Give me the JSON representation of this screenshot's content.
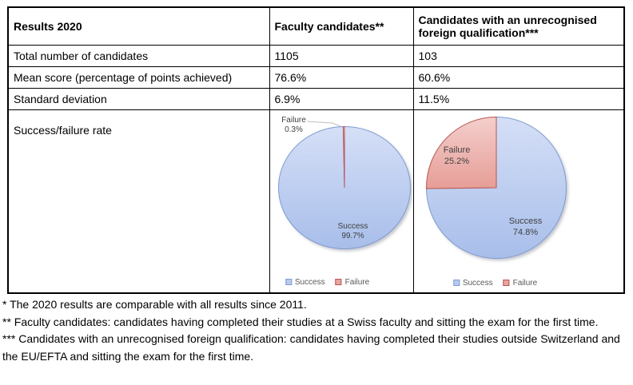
{
  "table": {
    "columns": [
      {
        "header": "Results 2020"
      },
      {
        "header": "Faculty candidates**"
      },
      {
        "header": "Candidates with an unrecognised foreign qualification***"
      }
    ],
    "rows": [
      {
        "label": "Total number of candidates",
        "faculty": "1105",
        "foreign": "103"
      },
      {
        "label": "Mean score (percentage of points achieved)",
        "faculty": "76.6%",
        "foreign": "60.6%"
      },
      {
        "label": "Standard deviation",
        "faculty": "6.9%",
        "foreign": "11.5%"
      }
    ],
    "pie_row_label": "Success/failure rate"
  },
  "chart_data": [
    {
      "type": "pie",
      "title": "Faculty candidates** success/failure rate",
      "categories": [
        "Success",
        "Failure"
      ],
      "values": [
        99.7,
        0.3
      ],
      "unit": "%",
      "slices": [
        {
          "name": "Success",
          "pct_label": "99.7%"
        },
        {
          "name": "Failure",
          "pct_label": "0.3%"
        }
      ],
      "legend": [
        "Success",
        "Failure"
      ],
      "legend_position": "bottom",
      "colors": [
        {
          "from": "#d5dff7",
          "to": "#a8beea",
          "mid": "#b7c9ee",
          "stroke": "#7e9bd0"
        },
        {
          "from": "#f4cfcc",
          "to": "#e69d97",
          "mid": "#e8a49e",
          "stroke": "#ba544f"
        }
      ]
    },
    {
      "type": "pie",
      "title": "Candidates with an unrecognised foreign qualification*** success/failure rate",
      "categories": [
        "Success",
        "Failure"
      ],
      "values": [
        74.8,
        25.2
      ],
      "unit": "%",
      "slices": [
        {
          "name": "Success",
          "pct_label": "74.8%"
        },
        {
          "name": "Failure",
          "pct_label": "25.2%"
        }
      ],
      "legend": [
        "Success",
        "Failure"
      ],
      "legend_position": "bottom",
      "colors": [
        {
          "from": "#d5dff7",
          "to": "#a8beea",
          "mid": "#b7c9ee",
          "stroke": "#7e9bd0"
        },
        {
          "from": "#f4cfcc",
          "to": "#e69d97",
          "mid": "#e8a49e",
          "stroke": "#ba544f"
        }
      ]
    }
  ],
  "footnotes": [
    "* The 2020 results are comparable with all results since 2011.",
    "** Faculty candidates: candidates having completed their studies at a Swiss faculty and sitting the exam for the first time.",
    "*** Candidates with an unrecognised foreign qualification: candidates having completed their studies outside Switzerland and the EU/EFTA and sitting the exam for the first time."
  ]
}
